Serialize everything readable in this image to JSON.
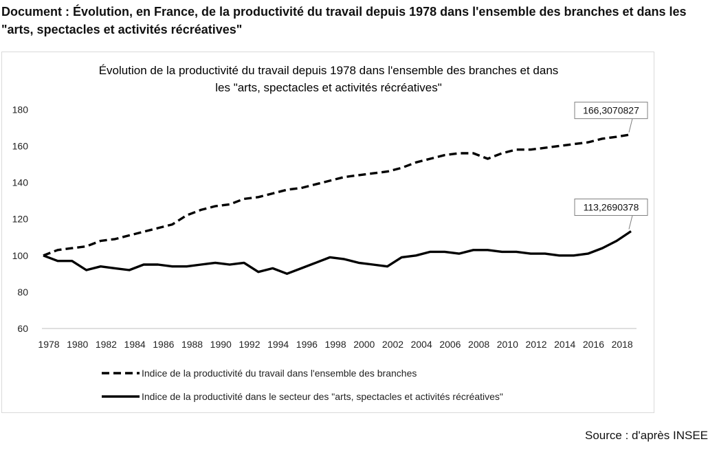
{
  "document": {
    "title": "Document : Évolution, en France, de la productivité du travail depuis 1978 dans l'ensemble des branches et dans les \"arts, spectacles et activités récréatives\"",
    "source": "Source : d'après INSEE"
  },
  "chart_data": {
    "type": "line",
    "title_lines": [
      "Évolution de la productivité du travail depuis 1978 dans l'ensemble des branches et dans",
      "les \"arts, spectacles et activités récréatives\""
    ],
    "xlabel": "",
    "ylabel": "",
    "x": [
      1978,
      1979,
      1980,
      1981,
      1982,
      1983,
      1984,
      1985,
      1986,
      1987,
      1988,
      1989,
      1990,
      1991,
      1992,
      1993,
      1994,
      1995,
      1996,
      1997,
      1998,
      1999,
      2000,
      2001,
      2002,
      2003,
      2004,
      2005,
      2006,
      2007,
      2008,
      2009,
      2010,
      2011,
      2012,
      2013,
      2014,
      2015,
      2016,
      2017,
      2018,
      2019
    ],
    "x_ticks": [
      "1978",
      "1980",
      "1982",
      "1984",
      "1986",
      "1988",
      "1990",
      "1992",
      "1994",
      "1996",
      "1998",
      "2000",
      "2002",
      "2004",
      "2006",
      "2008",
      "2010",
      "2012",
      "2014",
      "2016",
      "2018"
    ],
    "y_ticks": [
      "60",
      "80",
      "100",
      "120",
      "140",
      "160",
      "180"
    ],
    "ylim": [
      60,
      185
    ],
    "xlim": [
      1978,
      2019
    ],
    "grid": false,
    "series": [
      {
        "name": "Indice de la productivité du travail dans l'ensemble des branches",
        "style": "dashed",
        "color": "#000000",
        "values": [
          100,
          103,
          104,
          105,
          108,
          109,
          111,
          113,
          115,
          117,
          122,
          125,
          127,
          128,
          131,
          132,
          134,
          136,
          137,
          139,
          141,
          143,
          144,
          145,
          146,
          148,
          151,
          153,
          155,
          156,
          156,
          153,
          156,
          158,
          158,
          159,
          160,
          161,
          162,
          164,
          165,
          166.31
        ],
        "end_label": "166,3070827"
      },
      {
        "name": "Indice de la productivité dans le secteur des \"arts, spectacles et activités récréatives\"",
        "style": "solid",
        "color": "#000000",
        "values": [
          100,
          97,
          97,
          92,
          94,
          93,
          92,
          95,
          95,
          94,
          94,
          95,
          96,
          95,
          96,
          91,
          93,
          90,
          93,
          96,
          99,
          98,
          96,
          95,
          94,
          99,
          100,
          102,
          102,
          101,
          103,
          103,
          102,
          102,
          101,
          101,
          100,
          100,
          101,
          104,
          108,
          113.27
        ],
        "end_label": "113,2690378"
      }
    ],
    "legend_position": "bottom"
  }
}
